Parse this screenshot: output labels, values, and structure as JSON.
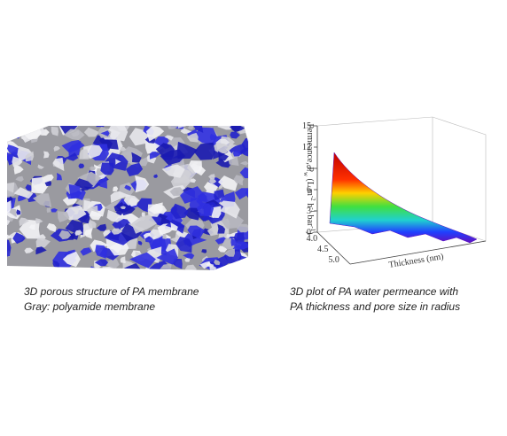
{
  "left_panel": {
    "caption": [
      "3D porous structure of PA membrane",
      "Gray: polyamide membrane"
    ]
  },
  "right_panel": {
    "z_label": [
      "Permeance, P",
      "w",
      " (L m",
      "-2",
      " h",
      "-1",
      " bar",
      "-1",
      ")"
    ],
    "z_ticks": [
      "0",
      "3",
      "6",
      "9",
      "12",
      "15"
    ],
    "pore_ticks": [
      "4.0",
      "4.5",
      "5.0"
    ],
    "thickness_label": "Thickness (nm)",
    "caption": [
      "3D plot of PA water permeance with",
      "PA thickness and pore size in radius"
    ]
  }
}
